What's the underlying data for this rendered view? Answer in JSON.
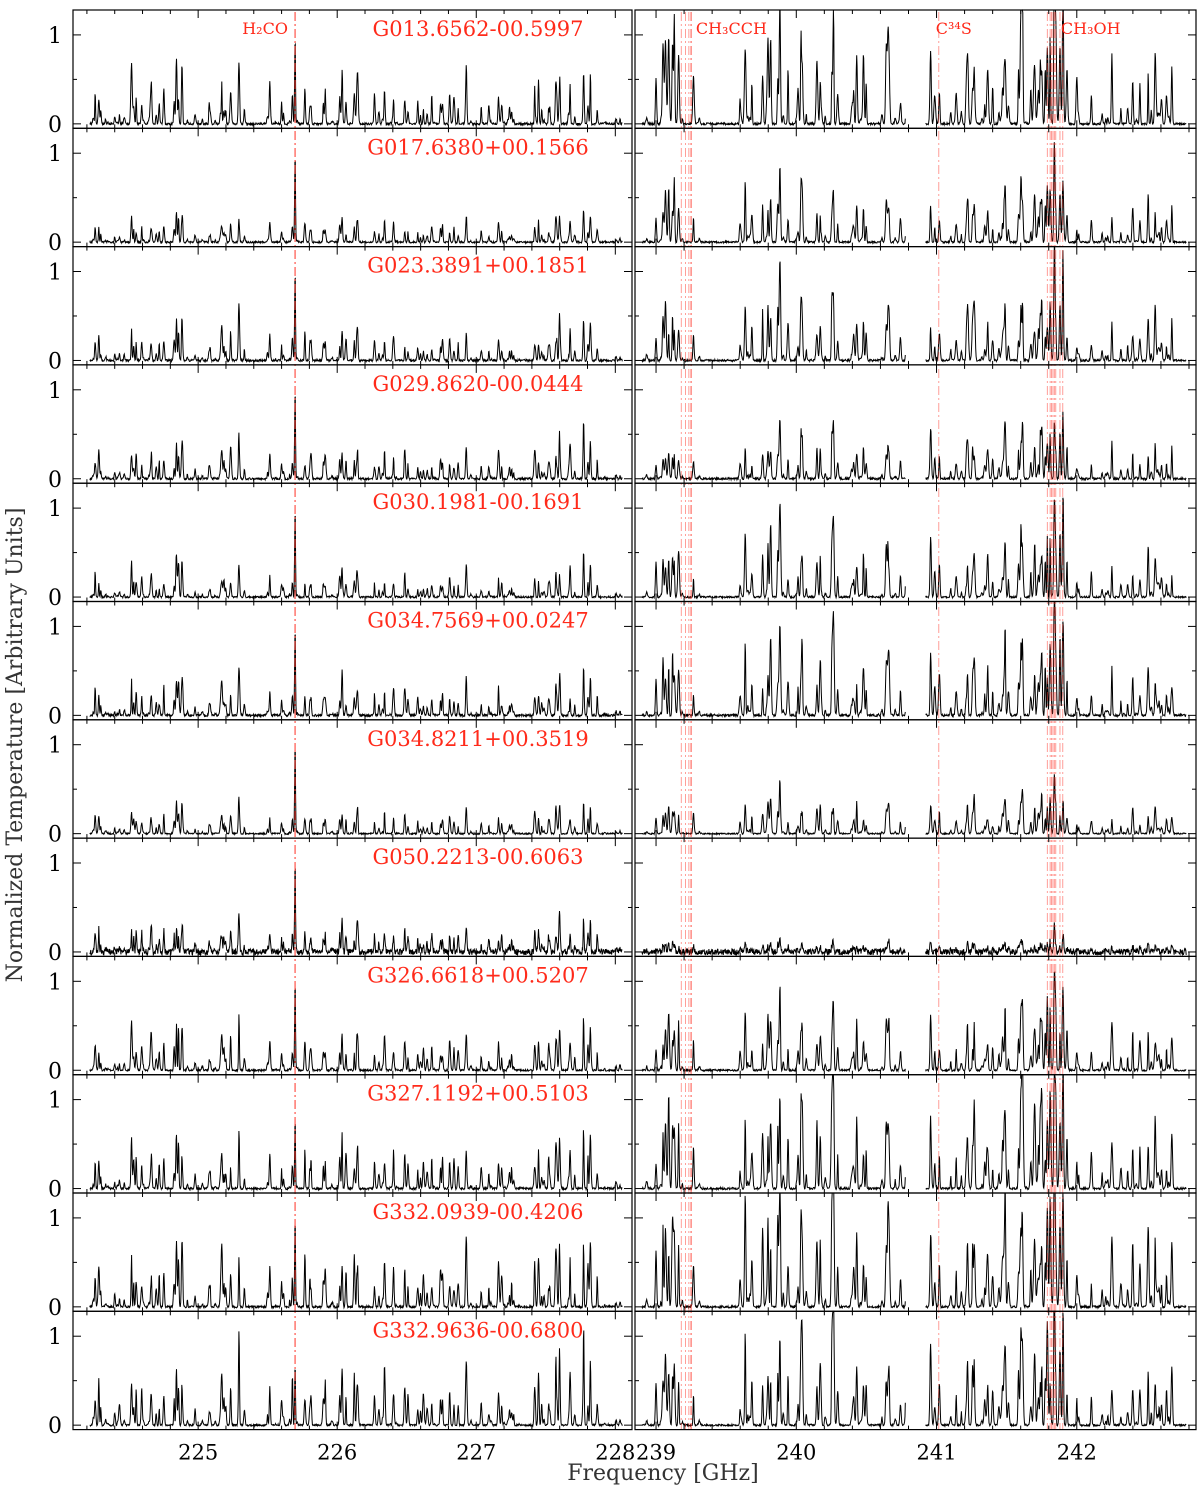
{
  "chart_data": {
    "type": "line",
    "ylabel": "Normalized Temperature [Arbitrary Units]",
    "xlabel": "Frequency [GHz]",
    "left_band": {
      "xlim": [
        224.1,
        228.12
      ],
      "xticks": [
        225,
        226,
        227,
        228
      ],
      "xtick_labels": [
        "225",
        "226",
        "227",
        "228"
      ]
    },
    "right_band": {
      "xlim": [
        238.85,
        242.85
      ],
      "xticks": [
        239,
        240,
        241,
        242
      ],
      "xtick_labels": [
        "239",
        "240",
        "241",
        "242"
      ]
    },
    "ylim": [
      -0.05,
      1.28
    ],
    "yticks": [
      0,
      1
    ],
    "ytick_labels": [
      "0",
      "1"
    ],
    "line_markers": [
      {
        "name": "H2CO",
        "label": "H₂CO",
        "band": "left",
        "freqs": [
          225.697
        ]
      },
      {
        "name": "CH3CCH",
        "label": "CH₃CCH",
        "band": "right",
        "freqs": [
          239.18,
          239.21,
          239.234,
          239.248,
          239.252
        ]
      },
      {
        "name": "C34S",
        "label": "C³⁴S",
        "band": "right",
        "freqs": [
          241.016
        ]
      },
      {
        "name": "CH3OH",
        "label": "CH₃OH",
        "band": "right",
        "freqs": [
          241.79,
          241.81,
          241.82,
          241.83,
          241.84,
          241.85,
          241.88,
          241.9
        ]
      }
    ],
    "sources": [
      {
        "name": "G013.6562-00.5997",
        "lpeak": 0.98,
        "lrich": 0.5,
        "rpeak": 1.02,
        "rrich": 0.95,
        "noise": 0.012,
        "gaps": []
      },
      {
        "name": "G017.6380+00.1566",
        "lpeak": 1.0,
        "lrich": 0.25,
        "rpeak": 0.6,
        "rrich": 0.55,
        "noise": 0.01,
        "gaps": []
      },
      {
        "name": "G023.3891+00.1851",
        "lpeak": 1.0,
        "lrich": 0.35,
        "rpeak": 0.7,
        "rrich": 0.6,
        "noise": 0.012,
        "gaps": []
      },
      {
        "name": "G029.8620-00.0444",
        "lpeak": 1.0,
        "lrich": 0.35,
        "rpeak": 0.55,
        "rrich": 0.45,
        "noise": 0.012,
        "gaps": []
      },
      {
        "name": "G030.1981-00.1691",
        "lpeak": 1.0,
        "lrich": 0.3,
        "rpeak": 0.8,
        "rrich": 0.6,
        "noise": 0.01,
        "gaps": []
      },
      {
        "name": "G034.7569+00.0247",
        "lpeak": 1.0,
        "lrich": 0.35,
        "rpeak": 1.0,
        "rrich": 0.7,
        "noise": 0.013,
        "gaps": []
      },
      {
        "name": "G034.8211+00.3519",
        "lpeak": 1.0,
        "lrich": 0.25,
        "rpeak": 0.55,
        "rrich": 0.35,
        "noise": 0.008,
        "gaps": []
      },
      {
        "name": "G050.2213-00.6063",
        "lpeak": 1.0,
        "lrich": 0.3,
        "rpeak": 0.7,
        "rrich": 0.1,
        "noise": 0.035,
        "gaps": [
          [
            240.78,
            240.92
          ]
        ]
      },
      {
        "name": "G326.6618+00.5207",
        "lpeak": 1.0,
        "lrich": 0.4,
        "rpeak": 0.85,
        "rrich": 0.6,
        "noise": 0.01,
        "gaps": []
      },
      {
        "name": "G327.1192+00.5103",
        "lpeak": 0.78,
        "lrich": 0.5,
        "rpeak": 1.0,
        "rrich": 0.9,
        "noise": 0.012,
        "gaps": []
      },
      {
        "name": "G332.0939-00.4206",
        "lpeak": 1.0,
        "lrich": 0.6,
        "rpeak": 1.0,
        "rrich": 1.0,
        "noise": 0.012,
        "gaps": []
      },
      {
        "name": "G332.9636-00.6800",
        "lpeak": 0.68,
        "lrich": 0.6,
        "rpeak": 1.0,
        "rrich": 0.85,
        "noise": 0.01,
        "gaps": []
      }
    ],
    "colors": {
      "spectrum": "#000000",
      "marker": "#ff3b30",
      "label": "#ff2a1a"
    },
    "grid": false,
    "legend": "none"
  }
}
